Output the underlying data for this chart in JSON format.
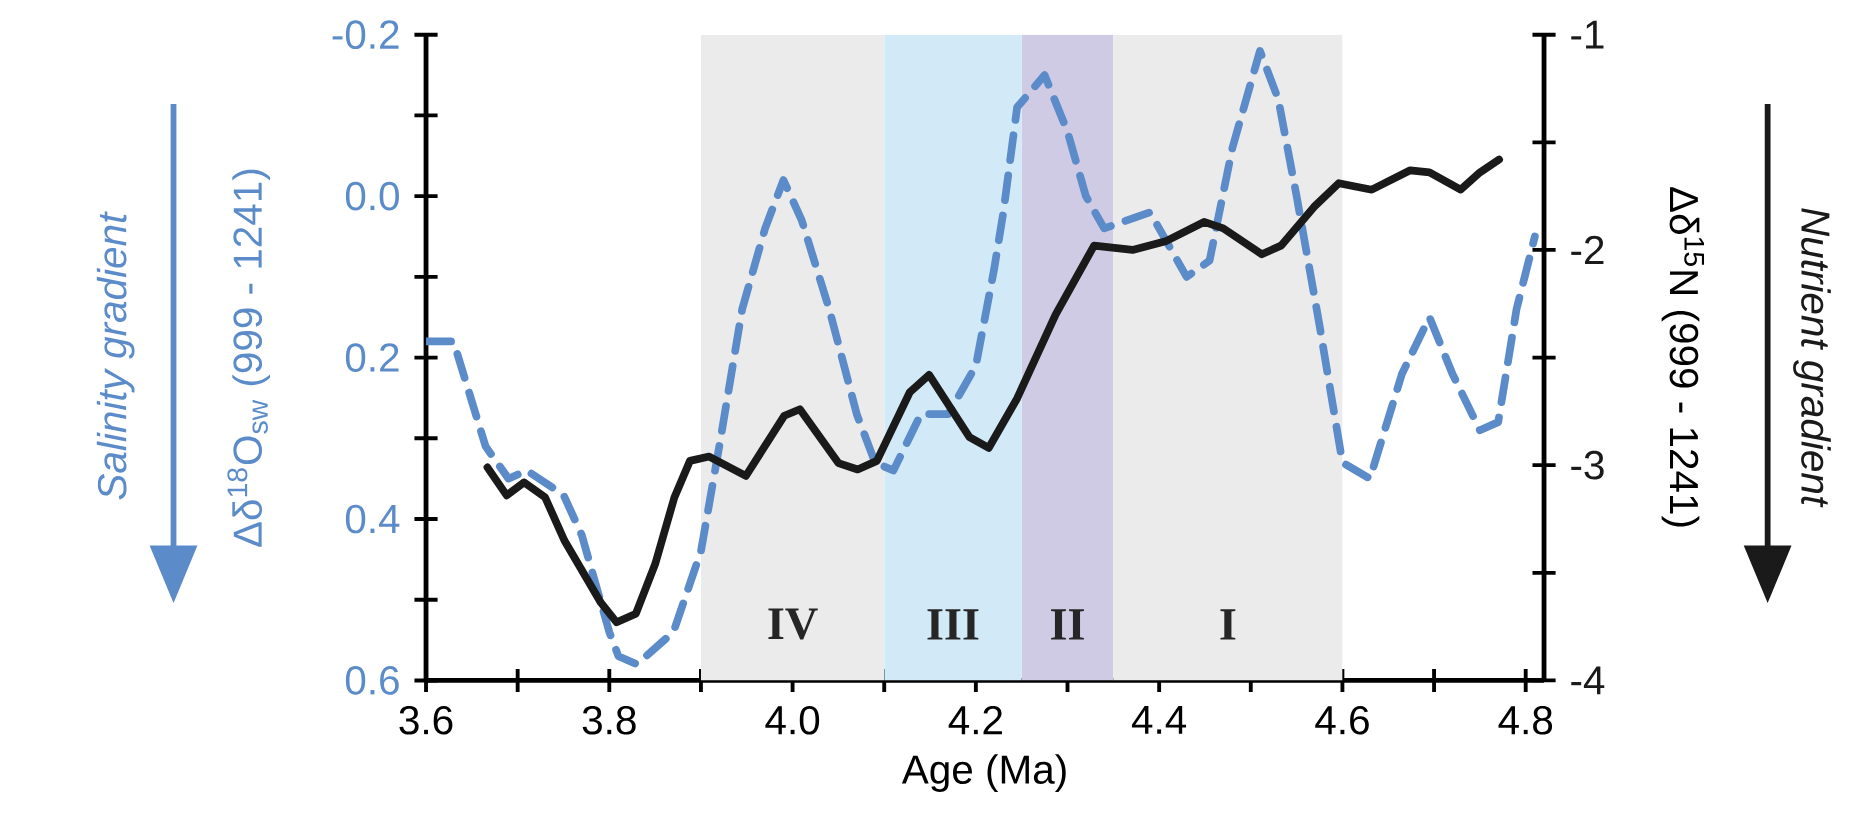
{
  "chart_data": {
    "type": "line",
    "xlabel": "Age (Ma)",
    "ylabel": "Δδ$^{18}$O$_{sw}$ (999 - 1241)",
    "y2label": "Δδ$^{15}$N (999 - 1241)",
    "annotations": [
      "Salinity gradient",
      "Nutrient gradient"
    ],
    "xlim": [
      3.6,
      4.82
    ],
    "xticks": [
      3.6,
      {
        "value": 3.7,
        "label": null
      },
      3.8,
      {
        "value": 3.9,
        "label": null
      },
      {
        "value": 4,
        "label": "4.0"
      },
      {
        "value": 4.1,
        "label": null
      },
      4.2,
      {
        "value": 4.3,
        "label": null
      },
      4.4,
      {
        "value": 4.5,
        "label": null
      },
      4.6,
      {
        "value": 4.7,
        "label": null
      },
      4.8
    ],
    "ylim": [
      0.6,
      -0.2
    ],
    "yticks": [
      -0.2,
      {
        "value": -0.1,
        "label": null
      },
      {
        "value": 0,
        "label": "0.0"
      },
      {
        "value": 0.1,
        "label": null
      },
      0.2,
      {
        "value": 0.3,
        "label": null
      },
      0.4,
      {
        "value": 0.5,
        "label": null
      },
      0.6
    ],
    "y2lim": [
      -4,
      -1
    ],
    "y2ticks": [
      -4,
      {
        "value": -3.5,
        "label": null
      },
      -3,
      {
        "value": -2.5,
        "label": null
      },
      -2,
      {
        "value": -1.5,
        "label": null
      },
      -1
    ],
    "bands": [
      {
        "axis": "x",
        "from": 3.9,
        "to": 4.1,
        "label": "IV",
        "color": "#ebebeb"
      },
      {
        "axis": "x",
        "from": 4.1,
        "to": 4.25,
        "label": "III",
        "color": "#d2e9f8"
      },
      {
        "axis": "x",
        "from": 4.25,
        "to": 4.35,
        "label": "II",
        "color": "#d0cbe4"
      },
      {
        "axis": "x",
        "from": 4.35,
        "to": 4.6,
        "label": "I",
        "color": "#ebebeb"
      }
    ],
    "series": [
      {
        "color": "#5b8bc9",
        "line_style": "dashed",
        "axis": "y",
        "x": [
          3.6,
          3.63,
          3.665,
          3.69,
          3.71,
          3.75,
          3.77,
          3.8,
          3.81,
          3.83,
          3.87,
          3.9,
          3.92,
          3.945,
          3.97,
          3.99,
          4.01,
          4.04,
          4.07,
          4.09,
          4.11,
          4.14,
          4.17,
          4.2,
          4.22,
          4.23,
          4.245,
          4.275,
          4.3,
          4.32,
          4.34,
          4.39,
          4.43,
          4.455,
          4.48,
          4.51,
          4.53,
          4.55,
          4.575,
          4.6,
          4.63,
          4.665,
          4.695,
          4.72,
          4.75,
          4.77,
          4.79,
          4.81
        ],
        "values": [
          0.18,
          0.18,
          0.31,
          0.35,
          0.34,
          0.37,
          0.42,
          0.54,
          0.57,
          0.58,
          0.54,
          0.44,
          0.31,
          0.14,
          0.04,
          -0.02,
          0.03,
          0.14,
          0.27,
          0.33,
          0.34,
          0.27,
          0.27,
          0.21,
          0.09,
          0.02,
          -0.11,
          -0.15,
          -0.08,
          0.0,
          0.04,
          0.02,
          0.1,
          0.08,
          -0.06,
          -0.18,
          -0.12,
          0.0,
          0.16,
          0.33,
          0.35,
          0.22,
          0.15,
          0.22,
          0.29,
          0.28,
          0.14,
          0.05
        ]
      },
      {
        "color": "#1a1a1a",
        "line_style": "solid",
        "axis": "y2",
        "x": [
          3.667,
          3.688,
          3.707,
          3.73,
          3.751,
          3.791,
          3.808,
          3.829,
          3.85,
          3.871,
          3.888,
          3.909,
          3.949,
          3.991,
          4.008,
          4.05,
          4.071,
          4.092,
          4.128,
          4.149,
          4.193,
          4.214,
          4.245,
          4.287,
          4.329,
          4.371,
          4.407,
          4.449,
          4.47,
          4.512,
          4.533,
          4.569,
          4.596,
          4.632,
          4.674,
          4.695,
          4.729,
          4.75,
          4.771
        ],
        "values": [
          -3.01,
          -3.14,
          -3.08,
          -3.15,
          -3.35,
          -3.64,
          -3.73,
          -3.69,
          -3.46,
          -3.15,
          -2.98,
          -2.96,
          -3.05,
          -2.77,
          -2.74,
          -2.99,
          -3.02,
          -2.98,
          -2.66,
          -2.58,
          -2.87,
          -2.92,
          -2.69,
          -2.3,
          -1.98,
          -2.0,
          -1.96,
          -1.87,
          -1.9,
          -2.02,
          -1.98,
          -1.8,
          -1.69,
          -1.72,
          -1.63,
          -1.64,
          -1.72,
          -1.64,
          -1.58
        ]
      }
    ]
  }
}
